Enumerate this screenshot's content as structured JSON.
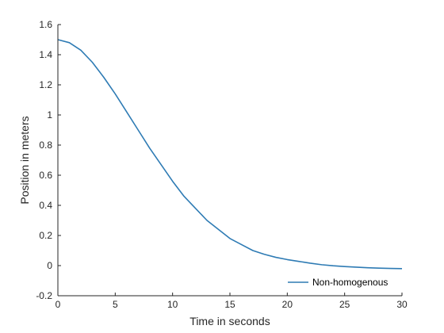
{
  "colors": {
    "series": "#2e7bb4",
    "axis": "#262626",
    "background": "#ffffff"
  },
  "chart_data": {
    "type": "line",
    "title": "",
    "xlabel": "Time in seconds",
    "ylabel": "Position in meters",
    "xlim": [
      0,
      30
    ],
    "ylim": [
      -0.2,
      1.6
    ],
    "xticks": [
      0,
      5,
      10,
      15,
      20,
      25,
      30
    ],
    "xtick_labels": [
      "0",
      "5",
      "10",
      "15",
      "20",
      "25",
      "30"
    ],
    "yticks": [
      -0.2,
      0,
      0.2,
      0.4,
      0.6,
      0.8,
      1,
      1.2,
      1.4,
      1.6
    ],
    "ytick_labels": [
      "-0.2",
      "0",
      "0.2",
      "0.4",
      "0.6",
      "0.8",
      "1",
      "1.2",
      "1.4",
      "1.6"
    ],
    "grid": false,
    "legend_position": "bottom-right",
    "series": [
      {
        "name": "Non-homogenous",
        "x": [
          0,
          1,
          2,
          3,
          4,
          5,
          6,
          7,
          8,
          9,
          10,
          11,
          12,
          13,
          14,
          15,
          16,
          17,
          18,
          19,
          20,
          21,
          22,
          23,
          24,
          25,
          26,
          27,
          28,
          29,
          30
        ],
        "y": [
          1.5,
          1.48,
          1.43,
          1.35,
          1.25,
          1.14,
          1.02,
          0.9,
          0.78,
          0.67,
          0.56,
          0.46,
          0.38,
          0.3,
          0.24,
          0.18,
          0.14,
          0.1,
          0.075,
          0.055,
          0.04,
          0.028,
          0.016,
          0.006,
          -0.001,
          -0.006,
          -0.01,
          -0.014,
          -0.017,
          -0.019,
          -0.02
        ]
      }
    ]
  }
}
